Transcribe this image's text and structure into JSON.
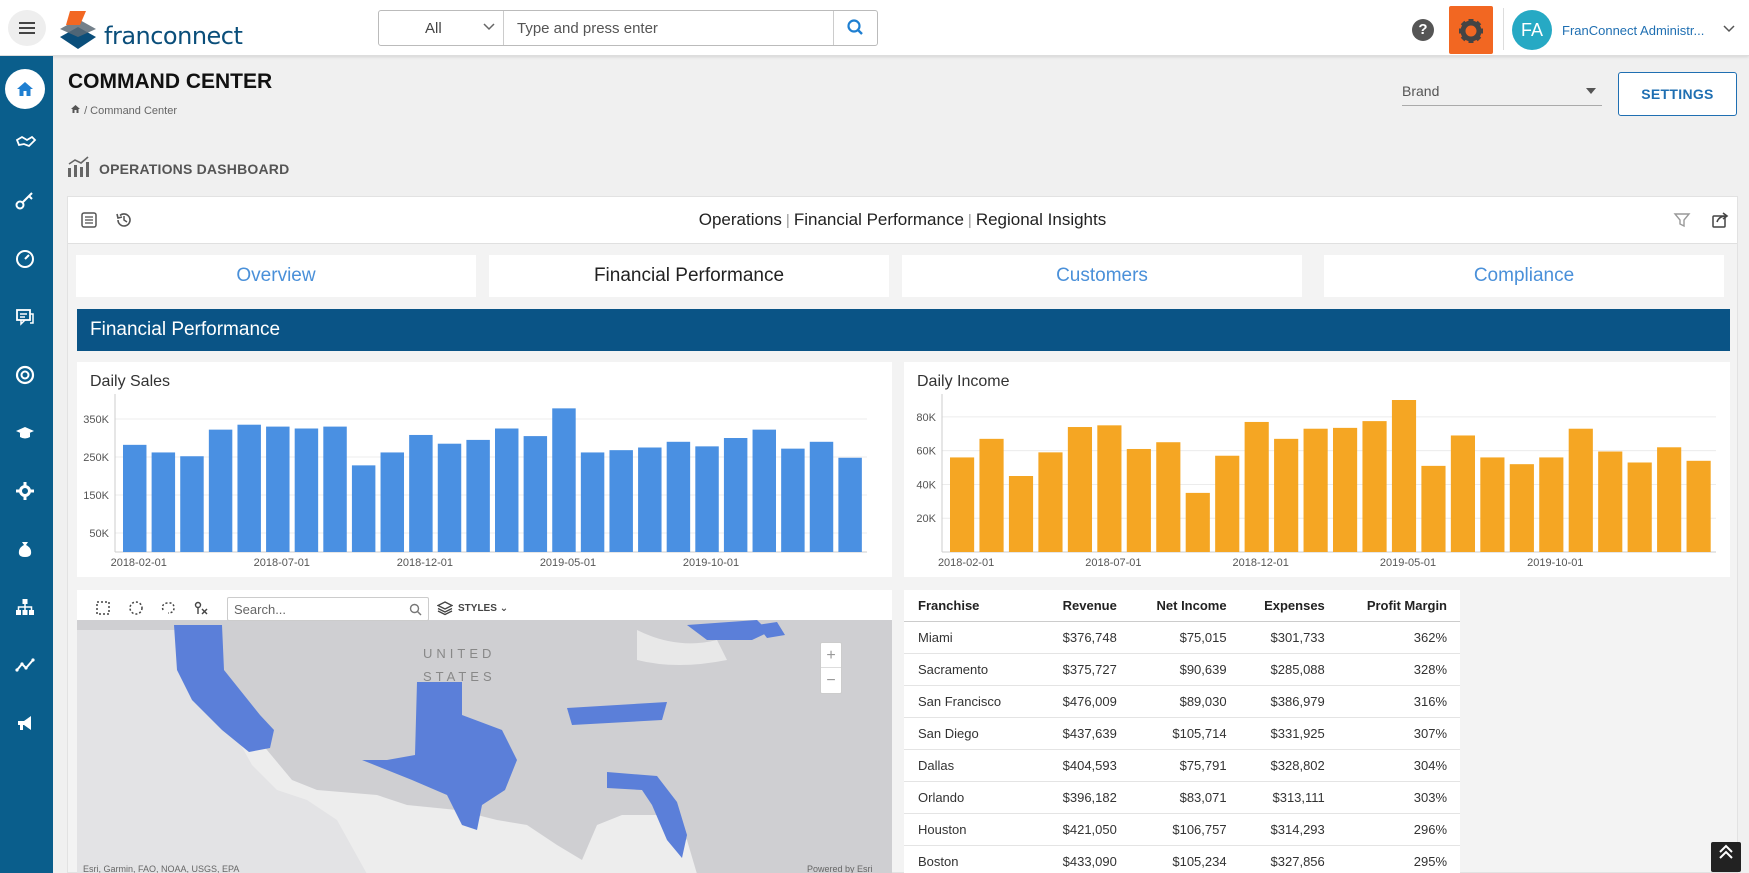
{
  "header": {
    "logo_text": "franconnect",
    "search": {
      "scope": "All",
      "placeholder": "Type and press enter"
    },
    "user": {
      "initials": "FA",
      "name": "FranConnect Administr..."
    },
    "help_glyph": "?"
  },
  "sidebar": {
    "items": [
      {
        "icon": "home-icon"
      },
      {
        "icon": "handshake-icon"
      },
      {
        "icon": "key-icon"
      },
      {
        "icon": "gauge-icon"
      },
      {
        "icon": "chat-icon"
      },
      {
        "icon": "lifebuoy-icon"
      },
      {
        "icon": "graduation-cap-icon"
      },
      {
        "icon": "gear-icon"
      },
      {
        "icon": "money-bag-icon"
      },
      {
        "icon": "org-chart-icon"
      },
      {
        "icon": "trend-line-icon"
      },
      {
        "icon": "megaphone-icon"
      }
    ]
  },
  "page": {
    "title": "COMMAND CENTER",
    "breadcrumb": "/ Command Center",
    "brand_select": "Brand",
    "settings_label": "SETTINGS",
    "section_title": "OPERATIONS DASHBOARD"
  },
  "dashboard": {
    "title_parts": [
      "Operations",
      "Financial Performance",
      "Regional Insights"
    ],
    "tabs": [
      "Overview",
      "Financial Performance",
      "Customers",
      "Compliance"
    ],
    "active_tab": 1,
    "banner": "Financial Performance"
  },
  "chart_data": [
    {
      "type": "bar",
      "title": "Daily Sales",
      "color": "#4a90e2",
      "ylim": [
        0,
        400000
      ],
      "yticks": [
        50000,
        150000,
        250000,
        350000
      ],
      "ytick_labels": [
        "50K",
        "150K",
        "250K",
        "350K"
      ],
      "xtick_labels": [
        "2018-02-01",
        "2018-07-01",
        "2018-12-01",
        "2019-05-01",
        "2019-10-01"
      ],
      "xtick_index": [
        0,
        5,
        10,
        15,
        20
      ],
      "values": [
        282000,
        262000,
        252000,
        322000,
        335000,
        330000,
        325000,
        330000,
        228000,
        262000,
        308000,
        285000,
        295000,
        325000,
        305000,
        378000,
        262000,
        268000,
        275000,
        290000,
        278000,
        300000,
        322000,
        272000,
        290000,
        248000
      ]
    },
    {
      "type": "bar",
      "title": "Daily Income",
      "color": "#f5a623",
      "ylim": [
        0,
        90000
      ],
      "yticks": [
        20000,
        40000,
        60000,
        80000
      ],
      "ytick_labels": [
        "20K",
        "40K",
        "60K",
        "80K"
      ],
      "xtick_labels": [
        "2018-02-01",
        "2018-07-01",
        "2018-12-01",
        "2019-05-01",
        "2019-10-01"
      ],
      "xtick_index": [
        0,
        5,
        10,
        15,
        20
      ],
      "values": [
        56000,
        67000,
        45000,
        59000,
        74000,
        75000,
        61000,
        65000,
        35000,
        57000,
        77000,
        67000,
        73000,
        73500,
        77500,
        90000,
        51000,
        69000,
        56000,
        52000,
        56000,
        73000,
        59500,
        53000,
        62000,
        54000
      ]
    }
  ],
  "map": {
    "search_placeholder": "Search...",
    "styles_label": "STYLES",
    "country_label_1": "UNITED",
    "country_label_2": "STATES",
    "zoom_in": "+",
    "zoom_out": "−",
    "attribution_left": "Esri, Garmin, FAO, NOAA, USGS, EPA",
    "attribution_right": "Powered by Esri",
    "highlight_color": "#5b7fd9"
  },
  "table": {
    "columns": [
      "Franchise",
      "Revenue",
      "Net Income",
      "Expenses",
      "Profit Margin"
    ],
    "rows": [
      [
        "Miami",
        "$376,748",
        "$75,015",
        "$301,733",
        "362%"
      ],
      [
        "Sacramento",
        "$375,727",
        "$90,639",
        "$285,088",
        "328%"
      ],
      [
        "San Francisco",
        "$476,009",
        "$89,030",
        "$386,979",
        "316%"
      ],
      [
        "San Diego",
        "$437,639",
        "$105,714",
        "$331,925",
        "307%"
      ],
      [
        "Dallas",
        "$404,593",
        "$75,791",
        "$328,802",
        "304%"
      ],
      [
        "Orlando",
        "$396,182",
        "$83,071",
        "$313,111",
        "303%"
      ],
      [
        "Houston",
        "$421,050",
        "$106,757",
        "$314,293",
        "296%"
      ],
      [
        "Boston",
        "$433,090",
        "$105,234",
        "$327,856",
        "295%"
      ]
    ]
  }
}
